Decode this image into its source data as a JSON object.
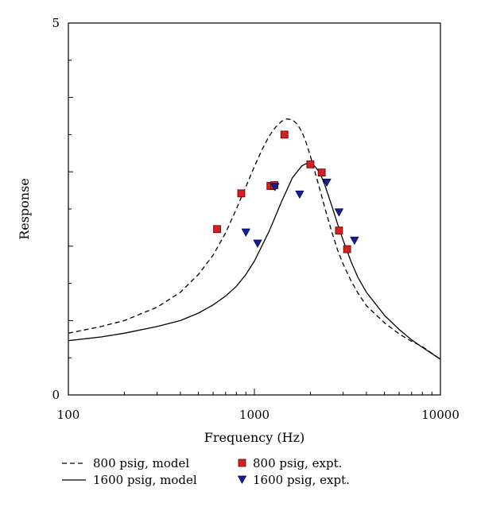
{
  "chart_data": {
    "type": "line",
    "xlabel": "Frequency (Hz)",
    "ylabel": "Response",
    "xscale": "log",
    "xlim": [
      100,
      10000
    ],
    "ylim": [
      0,
      5
    ],
    "x_ticks": [
      100,
      1000,
      10000
    ],
    "x_tick_labels": [
      "100",
      "1000",
      "10000"
    ],
    "y_ticks": [
      0,
      5
    ],
    "y_tick_labels": [
      "0",
      "5"
    ],
    "grid": false,
    "legend_position": "bottom",
    "series": [
      {
        "name": "800 psig, model",
        "kind": "line",
        "line_style": "dashed",
        "color": "#000000",
        "x": [
          100,
          150,
          200,
          300,
          400,
          500,
          600,
          700,
          800,
          900,
          1000,
          1100,
          1200,
          1300,
          1400,
          1500,
          1600,
          1700,
          1800,
          1900,
          2000,
          2200,
          2400,
          2600,
          2800,
          3000,
          3300,
          3600,
          4000,
          5000,
          6000,
          7000,
          8000,
          10000
        ],
        "y": [
          0.83,
          0.92,
          1.0,
          1.18,
          1.38,
          1.62,
          1.88,
          2.18,
          2.5,
          2.8,
          3.07,
          3.3,
          3.48,
          3.6,
          3.68,
          3.71,
          3.7,
          3.64,
          3.54,
          3.39,
          3.21,
          2.85,
          2.5,
          2.2,
          1.95,
          1.76,
          1.54,
          1.37,
          1.2,
          0.97,
          0.82,
          0.72,
          0.65,
          0.48
        ]
      },
      {
        "name": "1600 psig, model",
        "kind": "line",
        "line_style": "solid",
        "color": "#000000",
        "x": [
          100,
          150,
          200,
          300,
          400,
          500,
          600,
          700,
          800,
          900,
          1000,
          1200,
          1400,
          1600,
          1800,
          1900,
          2000,
          2100,
          2200,
          2300,
          2400,
          2600,
          2800,
          3000,
          3300,
          3600,
          4000,
          5000,
          6000,
          7000,
          8000,
          10000
        ],
        "y": [
          0.73,
          0.78,
          0.83,
          0.92,
          1.0,
          1.1,
          1.21,
          1.33,
          1.46,
          1.62,
          1.8,
          2.2,
          2.6,
          2.92,
          3.08,
          3.11,
          3.11,
          3.08,
          3.02,
          2.93,
          2.81,
          2.55,
          2.3,
          2.08,
          1.8,
          1.58,
          1.38,
          1.07,
          0.88,
          0.74,
          0.64,
          0.48
        ]
      },
      {
        "name": "800 psig, expt.",
        "kind": "marker",
        "marker": "square",
        "color": "#d42020",
        "x": [
          630,
          850,
          1220,
          1280,
          1450,
          2000,
          2300,
          2850,
          3150
        ],
        "y": [
          2.23,
          2.71,
          2.81,
          2.82,
          3.5,
          3.1,
          2.99,
          2.21,
          1.96
        ]
      },
      {
        "name": "1600 psig, expt.",
        "kind": "marker",
        "marker": "triangle-down",
        "color": "#1020a0",
        "x": [
          900,
          1040,
          1290,
          1750,
          2450,
          2850,
          3450
        ],
        "y": [
          2.19,
          2.04,
          2.8,
          2.7,
          2.86,
          2.46,
          2.08
        ]
      }
    ]
  }
}
